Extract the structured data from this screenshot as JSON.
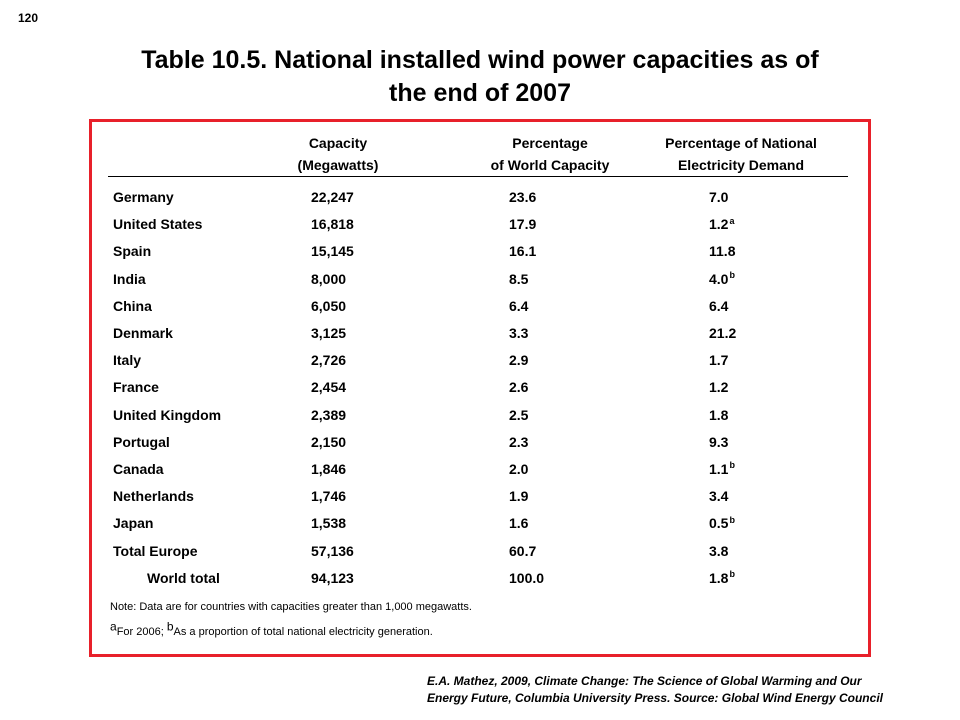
{
  "page_number": "120",
  "title_line1": "Table 10.5.  National installed wind power capacities as of",
  "title_line2": "the end of 2007",
  "columns": {
    "capacity": [
      "Capacity",
      "(Megawatts)"
    ],
    "world_pct": [
      "Percentage",
      "of World Capacity"
    ],
    "national_pct": [
      "Percentage  of National",
      "Electricity Demand"
    ]
  },
  "chart_data": {
    "type": "table",
    "title": "Table 10.5.  National installed wind power capacities as of the end of 2007",
    "headers": [
      "",
      "Capacity (Megawatts)",
      "Percentage of World Capacity",
      "Percentage of National Electricity Demand"
    ],
    "rows": [
      {
        "country": "Germany",
        "capacity": "22,247",
        "world_pct": "23.6",
        "national_pct": "7.0",
        "note": ""
      },
      {
        "country": "United States",
        "capacity": "16,818",
        "world_pct": "17.9",
        "national_pct": "1.2",
        "note": "a"
      },
      {
        "country": "Spain",
        "capacity": "15,145",
        "world_pct": "16.1",
        "national_pct": "11.8",
        "note": ""
      },
      {
        "country": "India",
        "capacity": "8,000",
        "world_pct": "8.5",
        "national_pct": "4.0",
        "note": "b"
      },
      {
        "country": "China",
        "capacity": "6,050",
        "world_pct": "6.4",
        "national_pct": "6.4",
        "note": ""
      },
      {
        "country": "Denmark",
        "capacity": "3,125",
        "world_pct": "3.3",
        "national_pct": "21.2",
        "note": ""
      },
      {
        "country": "Italy",
        "capacity": "2,726",
        "world_pct": "2.9",
        "national_pct": "1.7",
        "note": ""
      },
      {
        "country": "France",
        "capacity": "2,454",
        "world_pct": "2.6",
        "national_pct": "1.2",
        "note": ""
      },
      {
        "country": "United Kingdom",
        "capacity": "2,389",
        "world_pct": "2.5",
        "national_pct": "1.8",
        "note": ""
      },
      {
        "country": "Portugal",
        "capacity": "2,150",
        "world_pct": "2.3",
        "national_pct": "9.3",
        "note": ""
      },
      {
        "country": "Canada",
        "capacity": "1,846",
        "world_pct": "2.0",
        "national_pct": "1.1",
        "note": "b"
      },
      {
        "country": "Netherlands",
        "capacity": "1,746",
        "world_pct": "1.9",
        "national_pct": "3.4",
        "note": ""
      },
      {
        "country": "Japan",
        "capacity": "1,538",
        "world_pct": "1.6",
        "national_pct": "0.5",
        "note": "b"
      },
      {
        "country": "Total Europe",
        "capacity": "57,136",
        "world_pct": "60.7",
        "national_pct": "3.8",
        "note": ""
      },
      {
        "country": "World total",
        "capacity": "94,123",
        "world_pct": "100.0",
        "national_pct": "1.8",
        "note": "b",
        "indent": true
      }
    ]
  },
  "note_line": "Note: Data are for countries with capacities greater than 1,000 megawatts.",
  "footnote_a_mark": "a",
  "footnote_a_text": "For 2006; ",
  "footnote_b_mark": "b",
  "footnote_b_text": "As a proportion of total national electricity generation.",
  "source_line1": "E.A. Mathez, 2009, Climate Change: The Science of Global Warming and Our",
  "source_line2": "Energy Future, Columbia University Press.  Source: Global Wind Energy Council",
  "colors": {
    "frame": "#e8202a",
    "text": "#000000",
    "background": "#ffffff"
  }
}
